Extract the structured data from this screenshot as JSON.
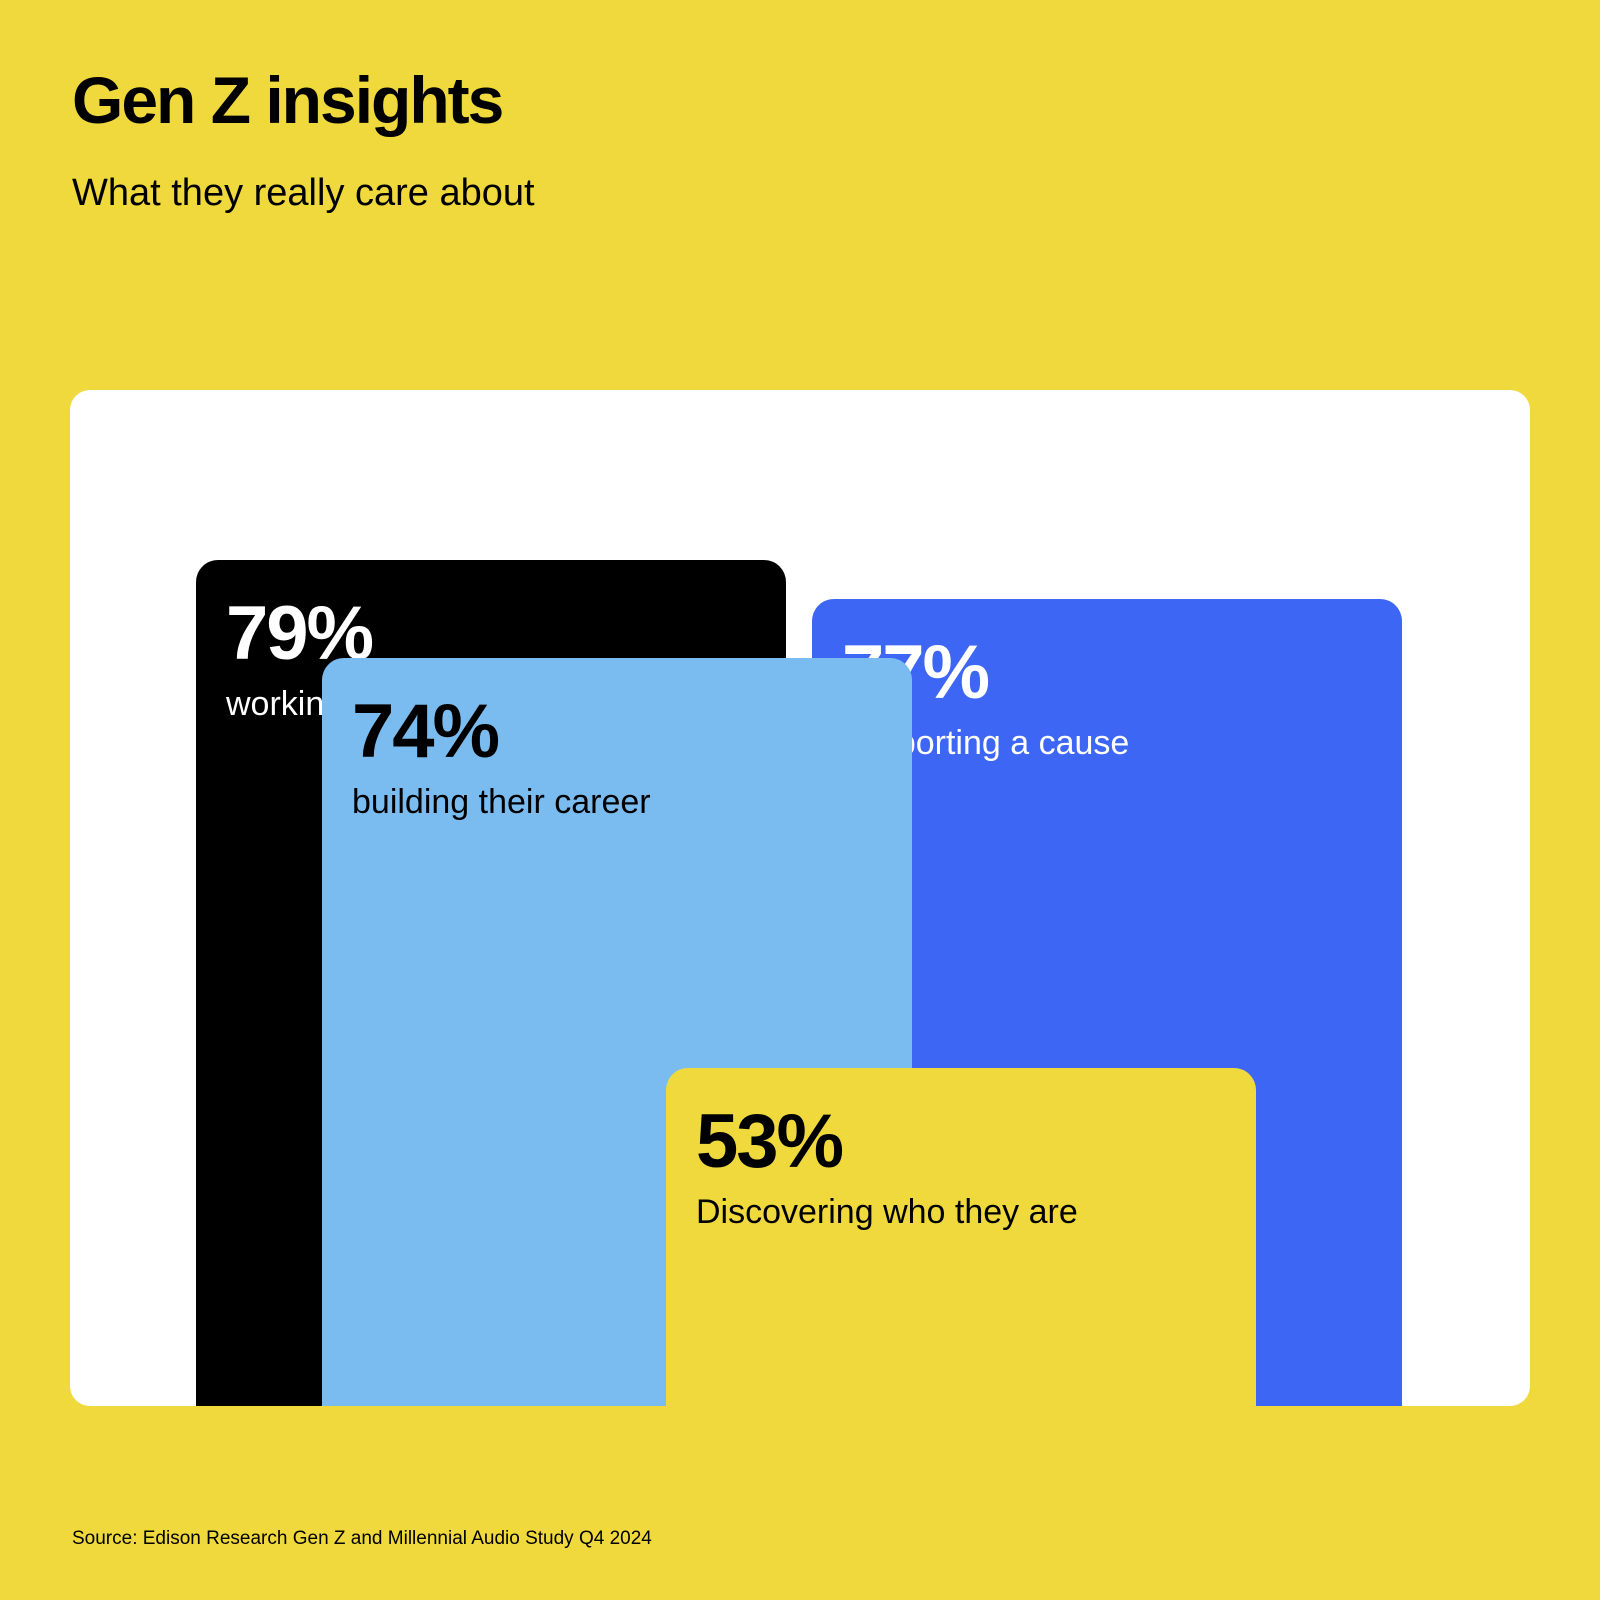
{
  "header": {
    "title": "Gen Z insights",
    "subtitle": "What they really care about"
  },
  "footer": {
    "source": "Source: Edison Research Gen Z and Millennial Audio Study Q4 2024"
  },
  "colors": {
    "background": "#f0d93c",
    "card": "#ffffff"
  },
  "chart_data": {
    "type": "bar",
    "title": "Gen Z insights",
    "subtitle": "What they really care about",
    "unit": "%",
    "ylim": [
      0,
      100
    ],
    "grid": false,
    "categories": [
      "working on their personal growth",
      "supporting a cause",
      "building their career",
      "Discovering who they are"
    ],
    "values": [
      79,
      77,
      74,
      53
    ],
    "value_labels": [
      "79%",
      "77%",
      "74%",
      "53%"
    ],
    "bar_colors": [
      "#000000",
      "#3d66f5",
      "#7bbcf0",
      "#f0d93c"
    ],
    "text_colors": [
      "#ffffff",
      "#ffffff",
      "#000000",
      "#000000"
    ]
  }
}
